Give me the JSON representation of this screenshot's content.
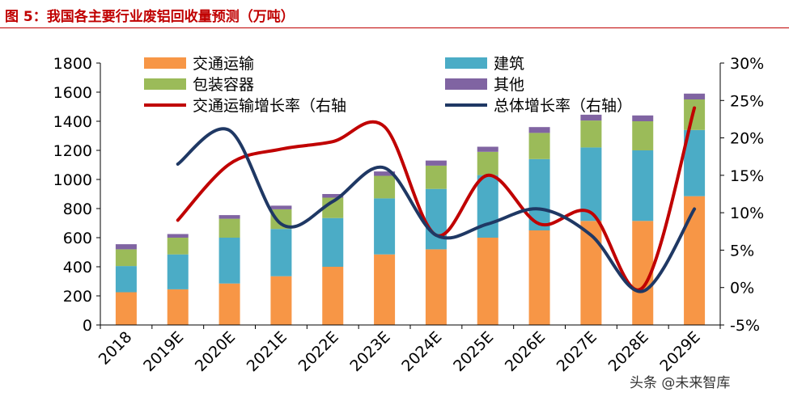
{
  "figure_title": "图 5：我国各主要行业废铝回收量预测（万吨）",
  "watermark": "头条 @未来智库",
  "colors": {
    "transport": "#f79646",
    "construction": "#4bacc6",
    "packaging": "#9bbb59",
    "other": "#8064a2",
    "transport_growth": "#c00000",
    "total_growth": "#1f3864",
    "title": "#c00000"
  },
  "chart_data": {
    "type": "bar",
    "stacked": true,
    "categories": [
      "2018",
      "2019E",
      "2020E",
      "2021E",
      "2022E",
      "2023E",
      "2024E",
      "2025E",
      "2026E",
      "2027E",
      "2028E",
      "2029E"
    ],
    "series": [
      {
        "name": "交通运输",
        "values": [
          225,
          245,
          285,
          335,
          400,
          485,
          520,
          600,
          650,
          715,
          715,
          885
        ]
      },
      {
        "name": "建筑",
        "values": [
          180,
          240,
          315,
          325,
          335,
          385,
          415,
          430,
          490,
          505,
          485,
          455
        ]
      },
      {
        "name": "包装容器",
        "values": [
          115,
          115,
          130,
          135,
          140,
          155,
          160,
          160,
          180,
          185,
          200,
          210
        ]
      },
      {
        "name": "其他",
        "values": [
          35,
          25,
          25,
          25,
          25,
          30,
          35,
          35,
          40,
          40,
          40,
          40
        ]
      }
    ],
    "line_series": [
      {
        "name": "交通运输增长率（右轴",
        "axis": "right",
        "values": [
          null,
          9.0,
          16.5,
          18.5,
          19.5,
          21.5,
          7.0,
          15.0,
          8.5,
          10.0,
          0.0,
          24.0
        ]
      },
      {
        "name": "总体增长率（右轴）",
        "axis": "right",
        "values": [
          null,
          16.5,
          21.0,
          8.5,
          11.5,
          16.0,
          7.0,
          8.5,
          10.5,
          7.0,
          -0.5,
          10.5
        ]
      }
    ],
    "ylim": [
      0,
      1800
    ],
    "yticks": [
      "0",
      "200",
      "400",
      "600",
      "800",
      "1000",
      "1200",
      "1400",
      "1600",
      "1800"
    ],
    "y2lim": [
      -5,
      30
    ],
    "y2ticks": [
      "-5%",
      "0%",
      "5%",
      "10%",
      "15%",
      "20%",
      "25%",
      "30%"
    ],
    "grid": false,
    "legend_position": "top"
  }
}
